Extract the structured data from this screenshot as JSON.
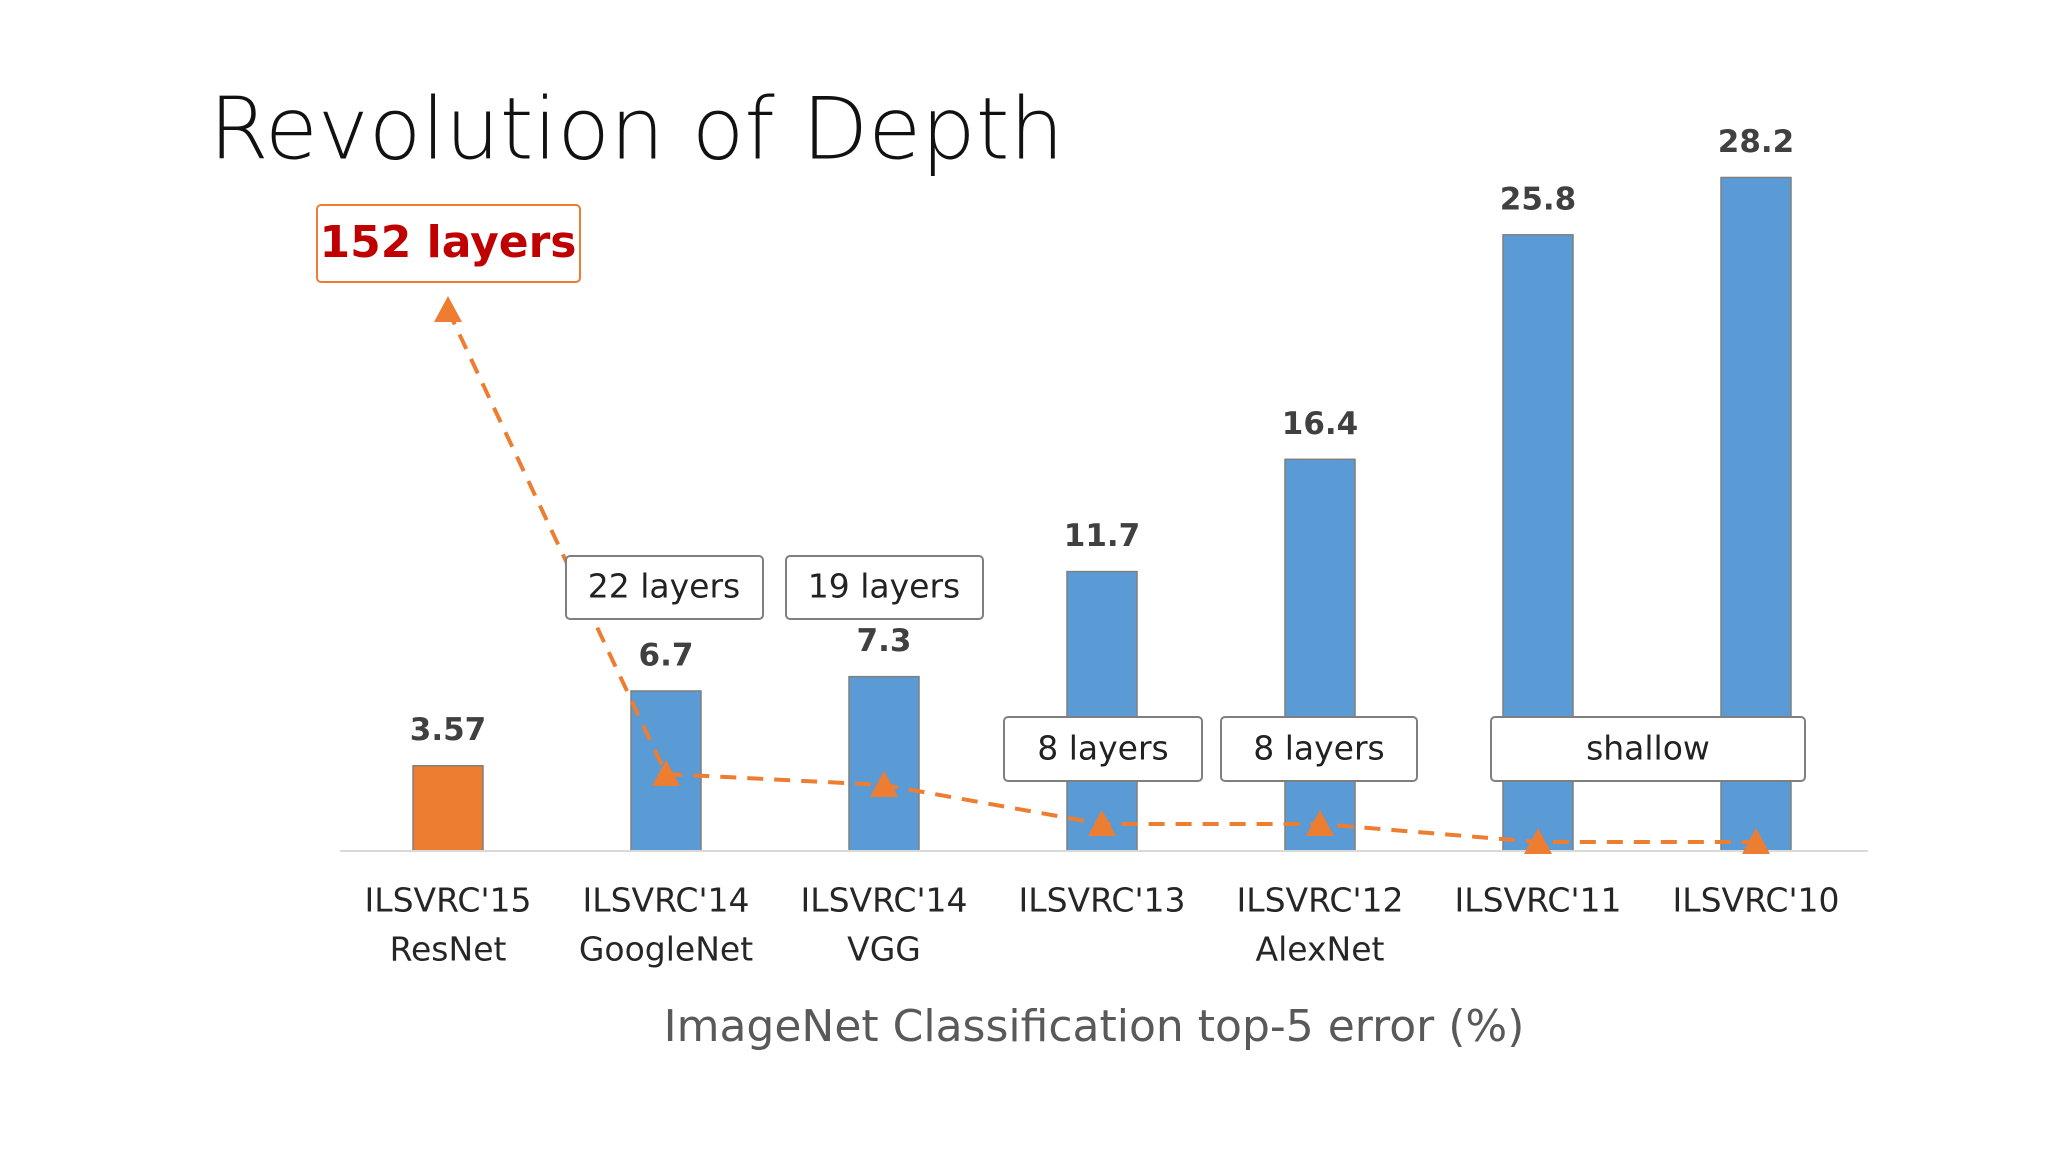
{
  "chart_data": {
    "type": "bar",
    "title": "Revolution of Depth",
    "x_label": "ImageNet Classification top-5 error (%)",
    "categories": [
      [
        "ILSVRC'15",
        "ResNet"
      ],
      [
        "ILSVRC'14",
        "GoogleNet"
      ],
      [
        "ILSVRC'14",
        "VGG"
      ],
      [
        "ILSVRC'13"
      ],
      [
        "ILSVRC'12",
        "AlexNet"
      ],
      [
        "ILSVRC'11"
      ],
      [
        "ILSVRC'10"
      ]
    ],
    "values": [
      3.57,
      6.7,
      7.3,
      11.7,
      16.4,
      25.8,
      28.2
    ],
    "colors": [
      "#ed7d31",
      "#5b9bd5",
      "#5b9bd5",
      "#5b9bd5",
      "#5b9bd5",
      "#5b9bd5",
      "#5b9bd5"
    ],
    "ylim": [
      0,
      30
    ],
    "annotations": [
      "152 layers",
      "22 layers",
      "19 layers",
      "8 layers",
      "8 layers",
      "shallow"
    ]
  }
}
